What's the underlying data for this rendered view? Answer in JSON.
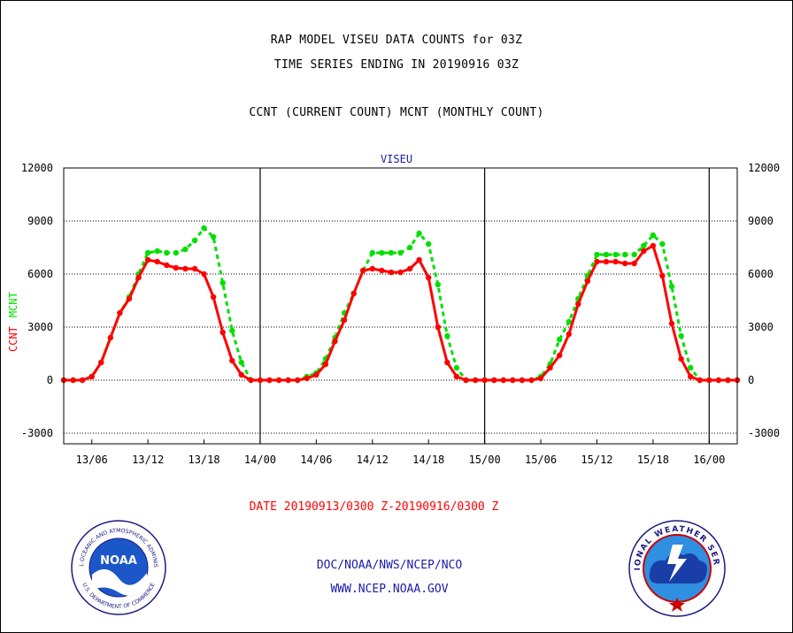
{
  "header": {
    "line1": "RAP MODEL VISEU DATA COUNTS for 03Z",
    "line2": "TIME SERIES ENDING IN 20190916 03Z",
    "line3": "CCNT (CURRENT COUNT) MCNT (MONTHLY COUNT)"
  },
  "chart_data": {
    "type": "line",
    "title": "VISEU",
    "ylabel_parts": [
      "CCNT",
      "MCNT"
    ],
    "ylim": [
      -3600,
      12000
    ],
    "yticks": [
      -3000,
      0,
      3000,
      6000,
      9000,
      12000
    ],
    "ytick_labels": [
      "-3000",
      "0",
      "3000",
      "6000",
      "9000",
      "12000"
    ],
    "x_range_hours": [
      0,
      72
    ],
    "x_ticks": [
      {
        "hour": 3,
        "label": "13/06"
      },
      {
        "hour": 9,
        "label": "13/12"
      },
      {
        "hour": 15,
        "label": "13/18"
      },
      {
        "hour": 21,
        "label": "14/00"
      },
      {
        "hour": 27,
        "label": "14/06"
      },
      {
        "hour": 33,
        "label": "14/12"
      },
      {
        "hour": 39,
        "label": "14/18"
      },
      {
        "hour": 45,
        "label": "15/00"
      },
      {
        "hour": 51,
        "label": "15/06"
      },
      {
        "hour": 57,
        "label": "15/12"
      },
      {
        "hour": 63,
        "label": "15/18"
      },
      {
        "hour": 69,
        "label": "16/00"
      }
    ],
    "day_boundaries_hours": [
      21,
      45,
      69
    ],
    "grid": "horizontal dotted",
    "series": [
      {
        "name": "CCNT",
        "color": "#ff0000",
        "style": "solid",
        "values": [
          0,
          0,
          0,
          200,
          1000,
          2400,
          3800,
          4600,
          5800,
          6800,
          6700,
          6500,
          6350,
          6300,
          6300,
          6000,
          4700,
          2700,
          1100,
          300,
          0,
          0,
          0,
          0,
          0,
          0,
          100,
          300,
          900,
          2200,
          3400,
          4900,
          6200,
          6300,
          6200,
          6100,
          6100,
          6300,
          6800,
          5800,
          3000,
          1000,
          200,
          0,
          0,
          0,
          0,
          0,
          0,
          0,
          0,
          100,
          700,
          1400,
          2600,
          4300,
          5600,
          6700,
          6700,
          6700,
          6600,
          6600,
          7300,
          7600,
          5900,
          3200,
          1200,
          200,
          0,
          0,
          0,
          0,
          0
        ]
      },
      {
        "name": "MCNT",
        "color": "#00e000",
        "style": "dashed",
        "values": [
          0,
          0,
          0,
          200,
          1000,
          2400,
          3800,
          4700,
          6000,
          7200,
          7300,
          7200,
          7200,
          7400,
          7900,
          8600,
          8100,
          5500,
          2800,
          1000,
          0,
          0,
          0,
          0,
          0,
          0,
          200,
          400,
          1200,
          2400,
          3800,
          4900,
          6200,
          7200,
          7200,
          7200,
          7200,
          7500,
          8300,
          7700,
          5400,
          2500,
          700,
          0,
          0,
          0,
          0,
          0,
          0,
          0,
          0,
          200,
          900,
          2300,
          3300,
          4600,
          5900,
          7100,
          7100,
          7100,
          7100,
          7100,
          7600,
          8200,
          7700,
          5300,
          2500,
          700,
          0,
          0,
          0,
          0,
          0
        ]
      }
    ],
    "date_range": "DATE 20190913/0300 Z-20190916/0300 Z"
  },
  "footer": {
    "line1": "DOC/NOAA/NWS/NCEP/NCO",
    "line2": "WWW.NCEP.NOAA.GOV"
  },
  "logos": {
    "noaa": {
      "center_text": "NOAA",
      "ring_top": "NATIONAL OCEANIC AND ATMOSPHERIC ADMINISTRATION",
      "ring_bottom": "U.S. DEPARTMENT OF COMMERCE"
    },
    "nws": {
      "ring_text": "NATIONAL WEATHER SERVICE"
    }
  },
  "colors": {
    "ccnt": "#ff0000",
    "mcnt": "#00e000",
    "axis": "#000000",
    "title_blue": "#1a1aa8"
  }
}
